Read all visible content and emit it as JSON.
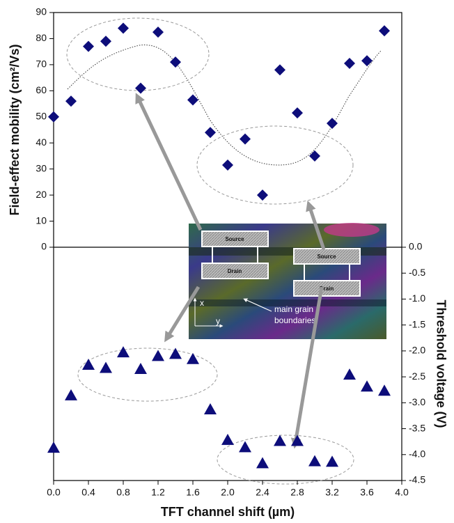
{
  "chart_data": [
    {
      "type": "scatter",
      "ylabel": "Field-effect mobility (cm²/Vs)",
      "x": [
        0.0,
        0.2,
        0.4,
        0.6,
        0.8,
        1.0,
        1.2,
        1.4,
        1.6,
        1.8,
        2.0,
        2.2,
        2.4,
        2.6,
        2.8,
        3.0,
        3.2,
        3.4,
        3.6,
        3.8
      ],
      "series": [
        {
          "color": "#0d0d7a",
          "marker": "diamond",
          "values": [
            50,
            56,
            77,
            79,
            84,
            61,
            82.5,
            71,
            56.5,
            44,
            31.5,
            41.5,
            20,
            68,
            51.5,
            35,
            47.5,
            70.5,
            71.5,
            83
          ]
        }
      ],
      "xlim": [
        0,
        4
      ],
      "ylim": [
        0,
        90
      ],
      "yticks": [
        0,
        10,
        20,
        30,
        40,
        50,
        60,
        70,
        80,
        90
      ],
      "annotations": [
        "Source",
        "Drain",
        "Source",
        "Drain",
        "main grain",
        "boundaries",
        "x",
        "y"
      ]
    },
    {
      "type": "scatter",
      "xlabel": "TFT channel shift (µm)",
      "y2label": "Threshold voltage (V)",
      "x": [
        0.0,
        0.2,
        0.4,
        0.6,
        0.8,
        1.0,
        1.2,
        1.4,
        1.6,
        1.8,
        2.0,
        2.2,
        2.4,
        2.6,
        2.8,
        3.0,
        3.2,
        3.4,
        3.6,
        3.8
      ],
      "series": [
        {
          "color": "#0d0d7a",
          "marker": "triangle",
          "axis": "y2",
          "values": [
            -3.87,
            -2.86,
            -2.27,
            -2.33,
            -2.03,
            -2.35,
            -2.1,
            -2.06,
            -2.16,
            -3.13,
            -3.72,
            -3.86,
            -4.17,
            -3.74,
            -3.74,
            -4.13,
            -4.14,
            -2.46,
            -2.69,
            -2.77
          ]
        }
      ],
      "xlim": [
        0,
        4
      ],
      "xticks": [
        {
          "value": 0,
          "label": "0.0"
        },
        0.4,
        0.8,
        1.2,
        1.6,
        {
          "value": 2,
          "label": "2.0"
        },
        2.4,
        2.8,
        3.2,
        3.6,
        {
          "value": 4,
          "label": "4.0"
        }
      ],
      "y2lim": [
        -4.5,
        0
      ],
      "y2ticks": [
        {
          "value": 0,
          "label": "0.0"
        },
        -0.5,
        {
          "value": -1,
          "label": "-1.0"
        },
        -1.5,
        {
          "value": -2,
          "label": "-2.0"
        },
        -2.5,
        {
          "value": -3,
          "label": "-3.0"
        },
        -3.5,
        {
          "value": -4,
          "label": "-4.0"
        },
        -4.5
      ]
    }
  ]
}
